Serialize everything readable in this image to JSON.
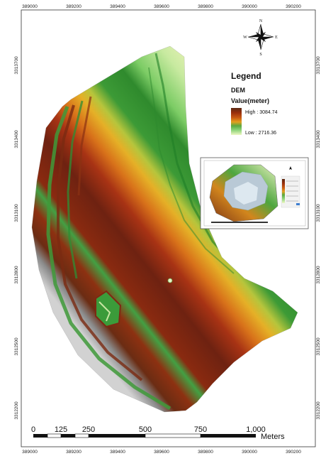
{
  "x_ticks": [
    "389000",
    "389200",
    "389400",
    "389600",
    "389800",
    "390000",
    "390200"
  ],
  "y_ticks": [
    "3313700",
    "3313400",
    "3313100",
    "3312800",
    "3312500",
    "3312200"
  ],
  "compass": {
    "n": "N",
    "s": "S",
    "e": "E",
    "w": "W"
  },
  "legend": {
    "title": "Legend",
    "layer": "DEM",
    "field": "Value(meter)",
    "high_label": "High : 3084.74",
    "low_label": "Low : 2716.36",
    "ramp_colors": [
      "#5a2a14",
      "#9a2f0c",
      "#c85a12",
      "#e3a020",
      "#5ba840",
      "#8ed47a",
      "#eef7c4"
    ]
  },
  "scalebar": {
    "labels": [
      "0",
      "125",
      "250",
      "500",
      "750",
      "1,000"
    ],
    "unit": "Meters"
  }
}
